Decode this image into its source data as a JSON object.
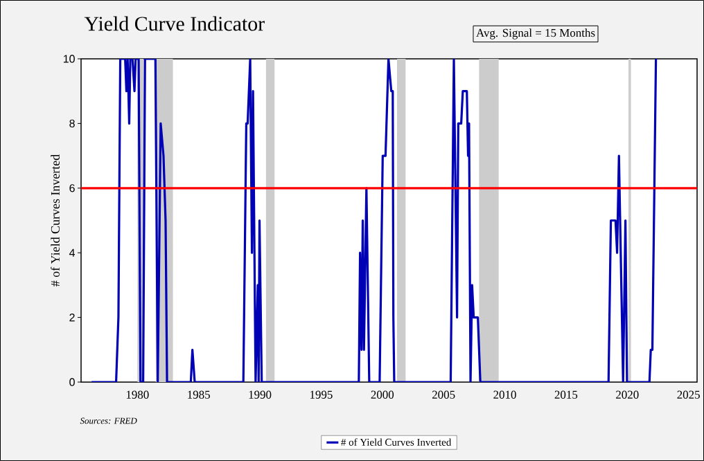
{
  "chart_data": {
    "type": "line",
    "title": "Yield Curve Indicator",
    "ylabel": "# of Yield Curves Inverted",
    "annotations": [
      "Avg. Signal = 15 Months",
      "Sources: FRED"
    ],
    "x": [
      1976.26,
      1978.26,
      1978.45,
      1978.6,
      1979.0,
      1979.1,
      1979.2,
      1979.33,
      1979.42,
      1979.6,
      1979.76,
      1979.85,
      1980.1,
      1980.25,
      1980.47,
      1980.62,
      1981.47,
      1981.66,
      1981.9,
      1982.13,
      1982.3,
      1982.42,
      1984.36,
      1984.49,
      1984.68,
      1988.65,
      1988.89,
      1989.0,
      1989.21,
      1989.35,
      1989.44,
      1989.65,
      1989.83,
      1989.9,
      1989.97,
      1990.15,
      1998.08,
      1998.18,
      1998.3,
      1998.4,
      1998.5,
      1998.7,
      1998.93,
      1999.78,
      2000.03,
      2000.26,
      2000.5,
      2000.73,
      2000.85,
      2000.9,
      2000.97,
      2005.58,
      2005.84,
      2006.1,
      2006.2,
      2006.44,
      2006.57,
      2006.9,
      2007.0,
      2007.08,
      2007.2,
      2007.33,
      2007.46,
      2007.8,
      2008.0,
      2018.47,
      2018.66,
      2019.04,
      2019.17,
      2019.32,
      2019.66,
      2019.85,
      2019.98,
      2021.81,
      2021.92,
      2022.05,
      2022.34
    ],
    "series": [
      {
        "name": "# of Yield Curves Inverted",
        "color": "#0000b4",
        "values": [
          0,
          0,
          2,
          10,
          10,
          9,
          10,
          8,
          10,
          10,
          9,
          10,
          10,
          0,
          0,
          10,
          10,
          0,
          8,
          7,
          5,
          0,
          0,
          1,
          0,
          0,
          8,
          8,
          10,
          4,
          9,
          0,
          3,
          0,
          5,
          0,
          0,
          4,
          1,
          5,
          1,
          6,
          0,
          0,
          7,
          7,
          10,
          9,
          9,
          2,
          0,
          0,
          10,
          2,
          8,
          8,
          9,
          9,
          7,
          8,
          0,
          3,
          2,
          2,
          0,
          0,
          5,
          5,
          4,
          7,
          0,
          5,
          0,
          0,
          1,
          1,
          10
        ]
      }
    ],
    "ref_lines": [
      {
        "axis": "y",
        "value": 6,
        "color": "#ff0000"
      }
    ],
    "bands": [
      {
        "axis": "x",
        "from": 1980.0,
        "to": 1980.5,
        "color": "#cccccc"
      },
      {
        "axis": "x",
        "from": 1981.5,
        "to": 1982.9,
        "color": "#cccccc"
      },
      {
        "axis": "x",
        "from": 1990.5,
        "to": 1991.2,
        "color": "#cccccc"
      },
      {
        "axis": "x",
        "from": 2001.2,
        "to": 2001.9,
        "color": "#cccccc"
      },
      {
        "axis": "x",
        "from": 2007.9,
        "to": 2009.5,
        "color": "#cccccc"
      },
      {
        "axis": "x",
        "from": 2020.1,
        "to": 2020.3,
        "color": "#cccccc"
      }
    ],
    "xlim": [
      1975.4,
      2025.7
    ],
    "ylim": [
      0,
      10
    ],
    "xticks": [
      1980,
      1985,
      1990,
      1995,
      2000,
      2005,
      2010,
      2015,
      2020,
      2025
    ],
    "yticks": [
      0,
      2,
      4,
      6,
      8,
      10
    ],
    "legend": "bottom",
    "grid": false
  }
}
